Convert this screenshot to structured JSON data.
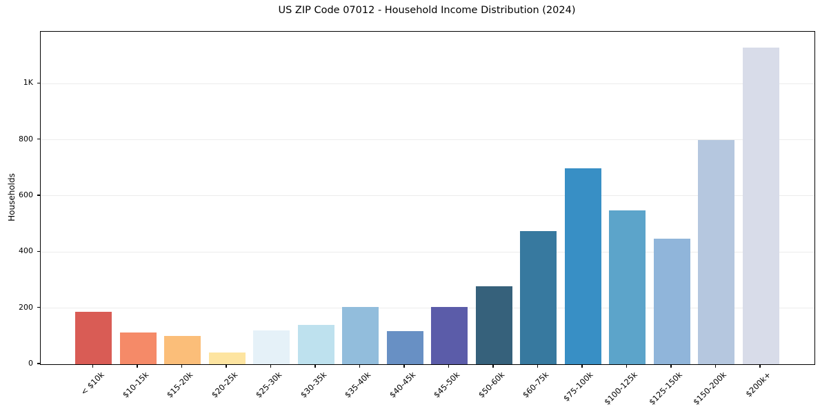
{
  "chart_data": {
    "type": "bar",
    "title": "US ZIP Code 07012 - Household Income Distribution (2024)",
    "xlabel": "",
    "ylabel": "Households",
    "categories": [
      "< $10k",
      "$10-15k",
      "$15-20k",
      "$20-25k",
      "$25-30k",
      "$30-35k",
      "$35-40k",
      "$40-45k",
      "$45-50k",
      "$50-60k",
      "$60-75k",
      "$75-100k",
      "$100-125k",
      "$125-150k",
      "$150-200k",
      "$200k+"
    ],
    "values": [
      187,
      113,
      101,
      43,
      120,
      140,
      203,
      117,
      203,
      278,
      474,
      698,
      548,
      448,
      798,
      1128
    ],
    "bar_colors": [
      "#d95c55",
      "#f58a68",
      "#fbbe79",
      "#fde4a0",
      "#e5f1f8",
      "#bee1ee",
      "#92bddc",
      "#6890c4",
      "#5b5ca9",
      "#36617b",
      "#37799f",
      "#388fc5",
      "#5ca4ca",
      "#90b5da",
      "#b5c7df",
      "#d8dce9"
    ],
    "ylim": [
      0,
      1185
    ],
    "yticks": {
      "values": [
        0,
        200,
        400,
        600,
        800,
        1000
      ],
      "labels": [
        "0",
        "200",
        "400",
        "600",
        "800",
        "1K"
      ]
    },
    "grid": "horizontal",
    "legend": "none",
    "x_tick_rotation_deg": 45
  }
}
